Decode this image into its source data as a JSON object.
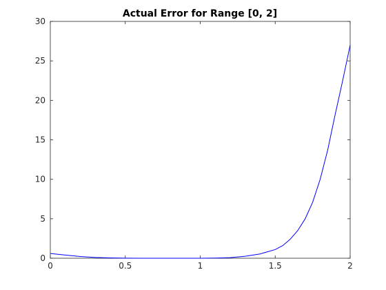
{
  "chart_data": {
    "type": "line",
    "title": "Actual Error for Range [0, 2]",
    "xlabel": "",
    "ylabel": "",
    "xlim": [
      0,
      2
    ],
    "ylim": [
      0,
      30
    ],
    "x_ticks": [
      0,
      0.5,
      1,
      1.5,
      2
    ],
    "x_tick_labels": [
      "0",
      "0.5",
      "1",
      "1.5",
      "2"
    ],
    "y_ticks": [
      0,
      5,
      10,
      15,
      20,
      25,
      30
    ],
    "y_tick_labels": [
      "0",
      "5",
      "10",
      "15",
      "20",
      "25",
      "30"
    ],
    "grid": false,
    "line_color": "#0000ff",
    "axis_color": "#262626",
    "series": [
      {
        "x": [
          0,
          0.1,
          0.2,
          0.3,
          0.4,
          0.5,
          0.6,
          0.7,
          0.8,
          0.9,
          1.0,
          1.1,
          1.2,
          1.3,
          1.4,
          1.5,
          1.55,
          1.6,
          1.65,
          1.7,
          1.75,
          1.8,
          1.85,
          1.9,
          1.95,
          2.0
        ],
        "values": [
          0.6,
          0.4,
          0.22,
          0.1,
          0.04,
          0.01,
          0.0,
          0.0,
          0.0,
          0.0,
          0.0,
          0.02,
          0.08,
          0.25,
          0.55,
          1.1,
          1.6,
          2.4,
          3.5,
          5.0,
          7.1,
          10.0,
          13.7,
          18.2,
          22.5,
          27.0
        ]
      }
    ]
  }
}
